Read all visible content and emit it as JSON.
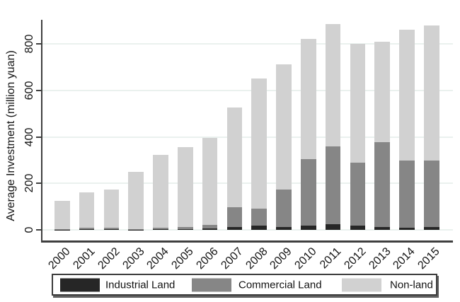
{
  "chart_data": {
    "type": "bar",
    "stacked": true,
    "title": "",
    "categories": [
      "2000",
      "2001",
      "2002",
      "2003",
      "2004",
      "2005",
      "2006",
      "2007",
      "2008",
      "2009",
      "2010",
      "2011",
      "2012",
      "2013",
      "2014",
      "2015"
    ],
    "series": [
      {
        "name": "Industrial Land",
        "color": "#262626",
        "values": [
          1,
          2,
          2,
          1,
          2,
          3,
          6,
          12,
          19,
          12,
          17,
          24,
          19,
          11,
          9,
          11
        ]
      },
      {
        "name": "Commercial Land",
        "color": "#868686",
        "values": [
          2,
          7,
          6,
          2,
          7,
          9,
          16,
          85,
          73,
          162,
          288,
          334,
          271,
          367,
          289,
          288
        ]
      },
      {
        "name": "Non-land",
        "color": "#d1d1d1",
        "values": [
          121,
          151,
          166,
          245,
          313,
          344,
          374,
          430,
          559,
          538,
          515,
          528,
          510,
          432,
          564,
          579
        ]
      }
    ],
    "totals": [
      124,
      160,
      174,
      248,
      322,
      356,
      396,
      527,
      651,
      712,
      820,
      886,
      800,
      810,
      862,
      878
    ],
    "xlabel": "",
    "ylabel": "Average Investment (million yuan)",
    "yticks": [
      0,
      200,
      400,
      600,
      800
    ],
    "ylim": [
      0,
      900
    ],
    "grid": true,
    "legend_position": "bottom"
  },
  "style": {
    "background": "#ffffff",
    "axis_color": "#3f3f3f",
    "grid_color": "#eaf1ee",
    "text_color": "#141414",
    "legend_border_color": "#3c3c3c"
  }
}
